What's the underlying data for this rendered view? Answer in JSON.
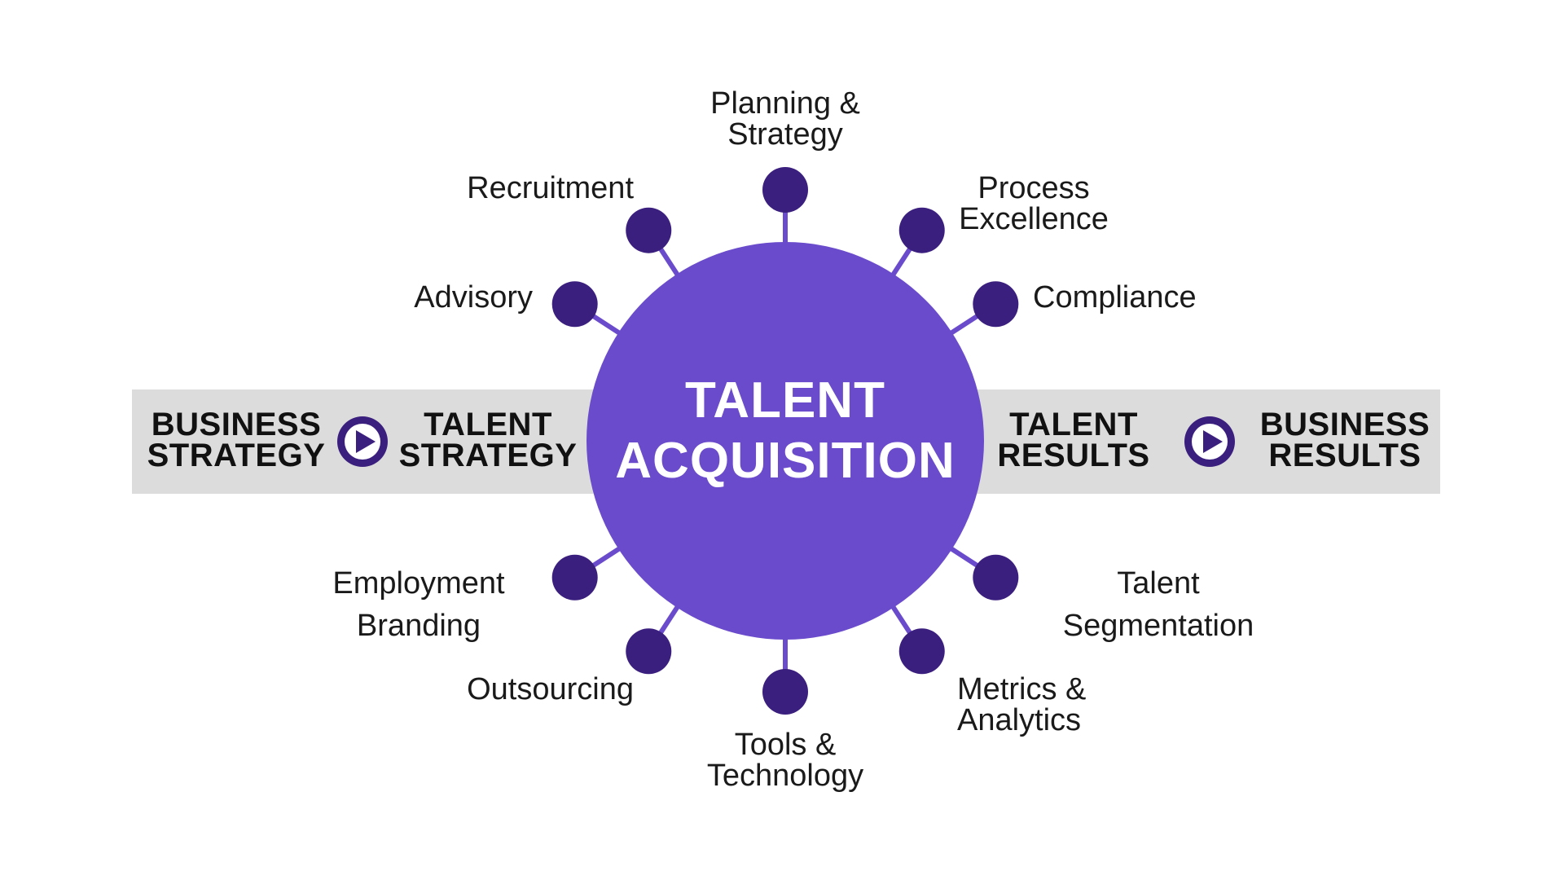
{
  "colors": {
    "accent": "#6a4bcb",
    "node": "#3b1f7e",
    "band": "#dcdcdc",
    "text": "#1a1a1a"
  },
  "center": {
    "line1": "TALENT",
    "line2": "ACQUISITION"
  },
  "band": {
    "left_source": [
      "BUSINESS",
      "STRATEGY"
    ],
    "left_target": [
      "TALENT",
      "STRATEGY"
    ],
    "right_source": [
      "TALENT",
      "RESULTS"
    ],
    "right_target": [
      "BUSINESS",
      "RESULTS"
    ],
    "arrow_icon": "play-icon"
  },
  "spokes": [
    {
      "id": "planning-strategy",
      "lines": [
        "Planning &",
        "Strategy"
      ]
    },
    {
      "id": "process-excellence",
      "lines": [
        "Process",
        "Excellence"
      ]
    },
    {
      "id": "compliance",
      "lines": [
        "Compliance"
      ]
    },
    {
      "id": "talent-segmentation",
      "lines": [
        "Talent",
        "Segmentation"
      ]
    },
    {
      "id": "metrics-analytics",
      "lines": [
        "Metrics &",
        "Analytics"
      ]
    },
    {
      "id": "tools-technology",
      "lines": [
        "Tools &",
        "Technology"
      ]
    },
    {
      "id": "outsourcing",
      "lines": [
        "Outsourcing"
      ]
    },
    {
      "id": "employment-branding",
      "lines": [
        "Employment",
        "Branding"
      ]
    },
    {
      "id": "advisory",
      "lines": [
        "Advisory"
      ]
    },
    {
      "id": "recruitment",
      "lines": [
        "Recruitment"
      ]
    }
  ]
}
